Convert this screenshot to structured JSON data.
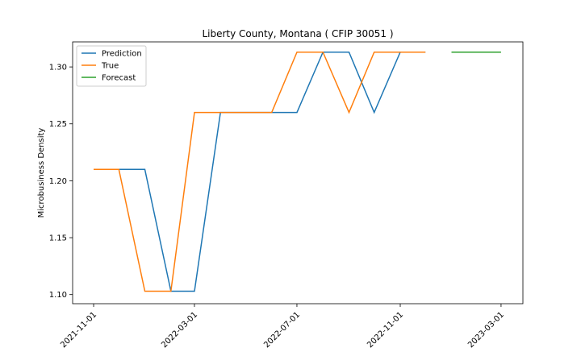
{
  "chart_data": {
    "type": "line",
    "title": "Liberty County, Montana ( CFIP 30051 )",
    "xlabel": "",
    "ylabel": "Microbusiness Density",
    "xlim": [
      "2021-10-07",
      "2023-03-27"
    ],
    "ylim": [
      1.092,
      1.322
    ],
    "x_ticks": [
      "2021-11-01",
      "2022-03-01",
      "2022-07-01",
      "2022-11-01",
      "2023-03-01"
    ],
    "y_ticks": [
      1.1,
      1.15,
      1.2,
      1.25,
      1.3
    ],
    "y_tick_labels": [
      "1.10",
      "1.15",
      "1.20",
      "1.25",
      "1.30"
    ],
    "legend_position": "upper-left",
    "colors": {
      "Prediction": "#1f77b4",
      "True": "#ff7f0e",
      "Forecast": "#2ca02c"
    },
    "series": [
      {
        "name": "Prediction",
        "x": [
          "2021-11-01",
          "2021-12-01",
          "2022-01-01",
          "2022-02-01",
          "2022-03-01",
          "2022-04-01",
          "2022-05-01",
          "2022-06-01",
          "2022-07-01",
          "2022-08-01",
          "2022-09-01",
          "2022-10-01",
          "2022-11-01",
          "2022-12-01"
        ],
        "values": [
          1.21,
          1.21,
          1.21,
          1.103,
          1.103,
          1.26,
          1.26,
          1.26,
          1.26,
          1.313,
          1.313,
          1.26,
          1.313,
          1.313
        ]
      },
      {
        "name": "True",
        "x": [
          "2021-11-01",
          "2021-12-01",
          "2022-01-01",
          "2022-02-01",
          "2022-03-01",
          "2022-04-01",
          "2022-05-01",
          "2022-06-01",
          "2022-07-01",
          "2022-08-01",
          "2022-09-01",
          "2022-10-01",
          "2022-11-01",
          "2022-12-01"
        ],
        "values": [
          1.21,
          1.21,
          1.103,
          1.103,
          1.26,
          1.26,
          1.26,
          1.26,
          1.313,
          1.313,
          1.26,
          1.313,
          1.313,
          1.313
        ]
      },
      {
        "name": "Forecast",
        "x": [
          "2023-01-01",
          "2023-02-01",
          "2023-03-01"
        ],
        "values": [
          1.313,
          1.313,
          1.313
        ]
      }
    ]
  }
}
